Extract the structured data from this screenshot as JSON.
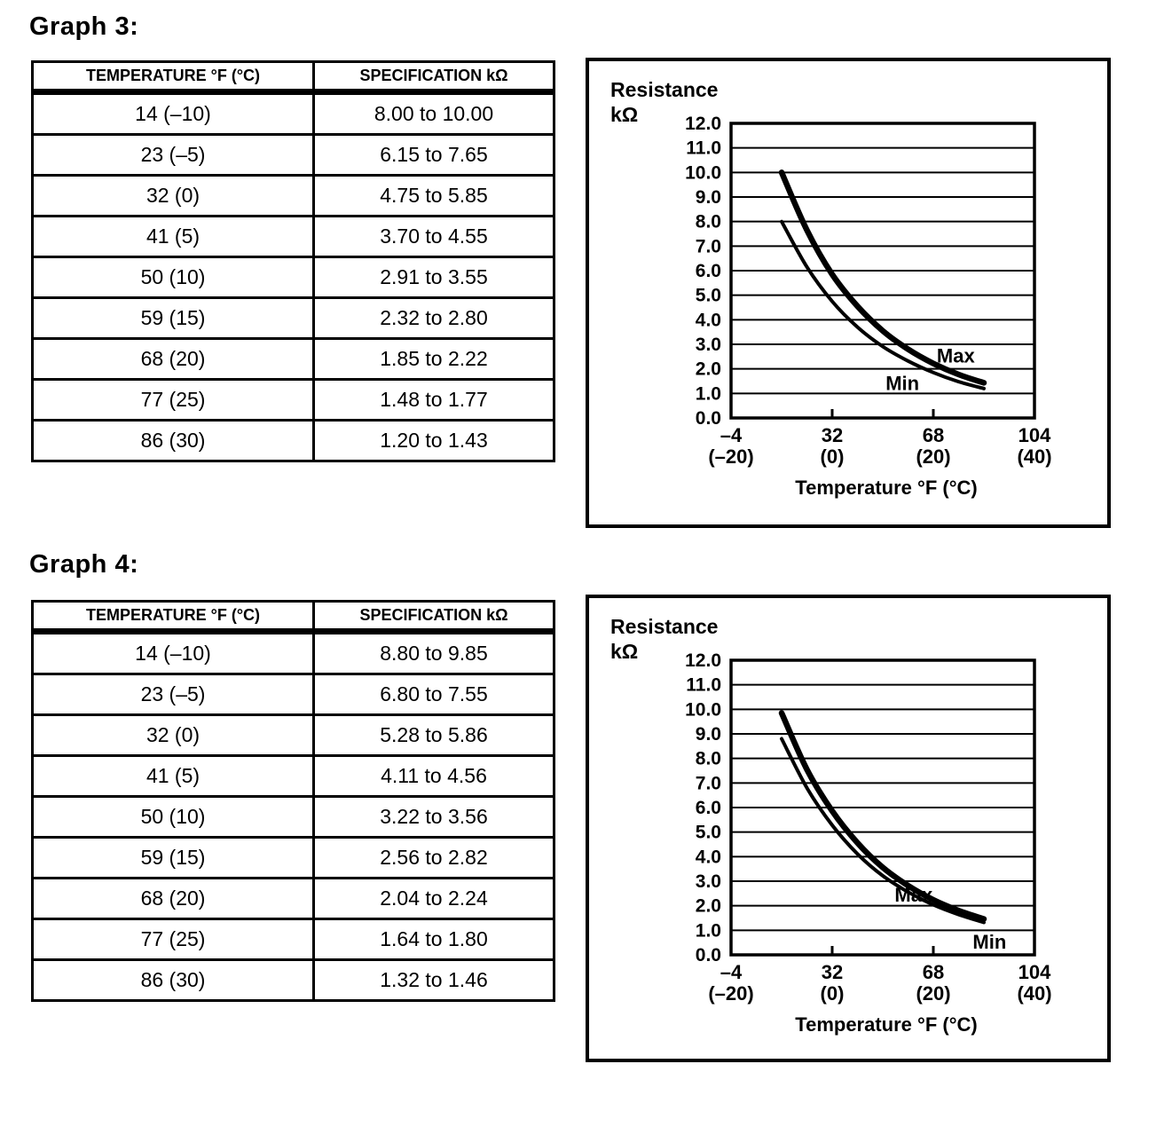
{
  "page": {
    "background": "#ffffff",
    "ink_color": "#000000"
  },
  "sections": [
    {
      "heading": "Graph 3:",
      "table": {
        "headers": [
          "TEMPERATURE °F (°C)",
          "SPECIFICATION kΩ"
        ],
        "rows": [
          [
            "14 (–10)",
            "8.00 to 10.00"
          ],
          [
            "23 (–5)",
            "6.15 to 7.65"
          ],
          [
            "32 (0)",
            "4.75 to 5.85"
          ],
          [
            "41 (5)",
            "3.70 to 4.55"
          ],
          [
            "50 (10)",
            "2.91 to 3.55"
          ],
          [
            "59 (15)",
            "2.32 to 2.80"
          ],
          [
            "68 (20)",
            "1.85 to 2.22"
          ],
          [
            "77 (25)",
            "1.48 to 1.77"
          ],
          [
            "86 (30)",
            "1.20 to 1.43"
          ]
        ]
      }
    },
    {
      "heading": "Graph 4:",
      "table": {
        "headers": [
          "TEMPERATURE °F (°C)",
          "SPECIFICATION kΩ"
        ],
        "rows": [
          [
            "14 (–10)",
            "8.80 to 9.85"
          ],
          [
            "23 (–5)",
            "6.80 to 7.55"
          ],
          [
            "32 (0)",
            "5.28 to 5.86"
          ],
          [
            "41 (5)",
            "4.11 to 4.56"
          ],
          [
            "50 (10)",
            "3.22 to 3.56"
          ],
          [
            "59 (15)",
            "2.56 to 2.82"
          ],
          [
            "68 (20)",
            "2.04 to 2.24"
          ],
          [
            "77 (25)",
            "1.64 to 1.80"
          ],
          [
            "86 (30)",
            "1.32 to 1.46"
          ]
        ]
      }
    }
  ],
  "chart_data": [
    {
      "type": "line",
      "title": "Graph 3",
      "ylabel_lines": [
        "Resistance",
        "kΩ"
      ],
      "xlabel": "Temperature °F (°C)",
      "xlim": [
        -4,
        104
      ],
      "ylim": [
        0,
        12
      ],
      "ytick_step": 1.0,
      "grid": "horizontal",
      "legend_position": "inline-labels",
      "x_fahrenheit": [
        14,
        23,
        32,
        41,
        50,
        59,
        68,
        77,
        86
      ],
      "x_celsius": [
        -10,
        -5,
        0,
        5,
        10,
        15,
        20,
        25,
        30
      ],
      "series": [
        {
          "name": "Max",
          "values": [
            10.0,
            7.65,
            5.85,
            4.55,
            3.55,
            2.8,
            2.22,
            1.77,
            1.43
          ]
        },
        {
          "name": "Min",
          "values": [
            8.0,
            6.15,
            4.75,
            3.7,
            2.91,
            2.32,
            1.85,
            1.48,
            1.2
          ]
        }
      ],
      "series_labels": [
        {
          "text": "Max",
          "x": 76,
          "y": 2.55
        },
        {
          "text": "Min",
          "x": 57,
          "y": 1.42
        }
      ],
      "xticks": [
        {
          "label_f": "–4",
          "label_c": "(–20)",
          "value": -4
        },
        {
          "label_f": "32",
          "label_c": "(0)",
          "value": 32
        },
        {
          "label_f": "68",
          "label_c": "(20)",
          "value": 68
        },
        {
          "label_f": "104",
          "label_c": "(40)",
          "value": 104
        }
      ]
    },
    {
      "type": "line",
      "title": "Graph 4",
      "ylabel_lines": [
        "Resistance",
        "kΩ"
      ],
      "xlabel": "Temperature °F (°C)",
      "xlim": [
        -4,
        104
      ],
      "ylim": [
        0,
        12
      ],
      "ytick_step": 1.0,
      "grid": "horizontal",
      "legend_position": "inline-labels",
      "x_fahrenheit": [
        14,
        23,
        32,
        41,
        50,
        59,
        68,
        77,
        86
      ],
      "x_celsius": [
        -10,
        -5,
        0,
        5,
        10,
        15,
        20,
        25,
        30
      ],
      "series": [
        {
          "name": "Max",
          "values": [
            9.85,
            7.55,
            5.86,
            4.56,
            3.56,
            2.82,
            2.24,
            1.8,
            1.46
          ]
        },
        {
          "name": "Min",
          "values": [
            8.8,
            6.8,
            5.28,
            4.11,
            3.22,
            2.56,
            2.04,
            1.64,
            1.32
          ]
        }
      ],
      "series_labels": [
        {
          "text": "Max",
          "x": 61,
          "y": 2.45
        },
        {
          "text": "Min",
          "x": 88,
          "y": 0.55
        }
      ],
      "xticks": [
        {
          "label_f": "–4",
          "label_c": "(–20)",
          "value": -4
        },
        {
          "label_f": "32",
          "label_c": "(0)",
          "value": 32
        },
        {
          "label_f": "68",
          "label_c": "(20)",
          "value": 68
        },
        {
          "label_f": "104",
          "label_c": "(40)",
          "value": 104
        }
      ]
    }
  ]
}
